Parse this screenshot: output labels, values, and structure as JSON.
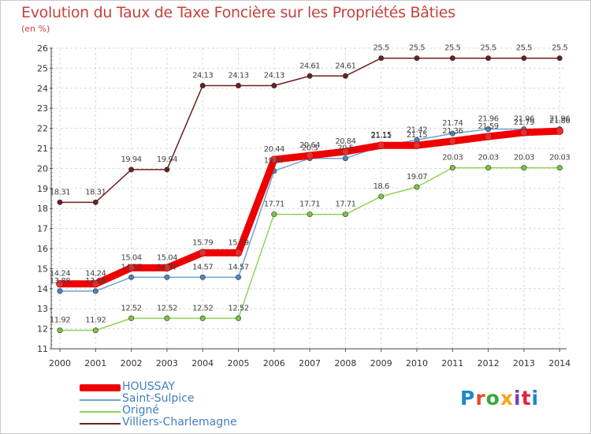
{
  "title": "Evolution du Taux de Taxe Foncière sur les Propriétés Bâties",
  "subtitle": "(en %)",
  "logo": {
    "text": "Proxiti",
    "colors": [
      "#1e88c8",
      "#e84b2a",
      "#3aa63a",
      "#f2a81d",
      "#7c3fb0",
      "#e0233d",
      "#1e88c8"
    ]
  },
  "chart_data": {
    "type": "line",
    "title": "Evolution du Taux de Taxe Foncière sur les Propriétés Bâties",
    "ylabel": "(en %)",
    "xlabel": "",
    "ylim": [
      11,
      26
    ],
    "yticks": [
      11,
      12,
      13,
      14,
      15,
      16,
      17,
      18,
      19,
      20,
      21,
      22,
      23,
      24,
      25,
      26
    ],
    "categories": [
      "2000",
      "2001",
      "2002",
      "2003",
      "2004",
      "2005",
      "2006",
      "2007",
      "2008",
      "2009",
      "2010",
      "2011",
      "2012",
      "2013",
      "2014"
    ],
    "grid": true,
    "legend": "bottom-left",
    "series": [
      {
        "name": "Villiers-Charlemagne",
        "color": "#6b2020",
        "marker": "#6b2020",
        "values": [
          18.31,
          18.31,
          19.94,
          19.94,
          24.13,
          24.13,
          24.13,
          24.61,
          24.61,
          25.5,
          25.5,
          25.5,
          25.5,
          25.5,
          25.5
        ],
        "labels": [
          "18.31",
          "18.31",
          "19.94",
          "19.94",
          "24.13",
          "24.13",
          "24.13",
          "24.61",
          "24.61",
          "25.5",
          "25.5",
          "25.5",
          "25.5",
          "25.5",
          "25.5"
        ]
      },
      {
        "name": "Origné",
        "color": "#8fd454",
        "marker": "#7cc442",
        "values": [
          11.92,
          11.92,
          12.52,
          12.52,
          12.52,
          12.52,
          17.71,
          17.71,
          17.71,
          18.6,
          19.07,
          20.03,
          20.03,
          20.03,
          20.03
        ],
        "labels": [
          "11.92",
          "11.92",
          "12.52",
          "12.52",
          "12.52",
          "12.52",
          "17.71",
          "17.71",
          "17.71",
          "18.6",
          "19.07",
          "20.03",
          "20.03",
          "20.03",
          "20.03"
        ]
      },
      {
        "name": "Saint-Sulpice",
        "color": "#6fa3d4",
        "marker": "#4a86c0",
        "values": [
          13.88,
          13.88,
          14.57,
          14.57,
          14.57,
          14.57,
          19.87,
          20.5,
          20.5,
          21.11,
          21.42,
          21.74,
          21.96,
          21.96,
          21.96
        ],
        "labels": [
          "13.88",
          "13.88",
          "14.57",
          "14.57",
          "14.57",
          "14.57",
          "19.87",
          "20.5",
          "20.5",
          "21.11",
          "21.42",
          "21.74",
          "21.96",
          "21.96",
          "21.96"
        ]
      },
      {
        "name": "HOUSSAY",
        "color": "#ee0000",
        "marker": "#e03030",
        "values": [
          14.24,
          14.24,
          15.04,
          15.04,
          15.79,
          15.79,
          20.44,
          20.64,
          20.84,
          21.15,
          21.15,
          21.36,
          21.59,
          21.79,
          21.86
        ],
        "labels": [
          "14.24",
          "14.24",
          "15.04",
          "15.04",
          "15.79",
          "15.79",
          "20.44",
          "20.64",
          "20.84",
          "21.15",
          "21.15",
          "21.36",
          "21.59",
          "21.79",
          "21.86"
        ]
      }
    ]
  },
  "legend": [
    {
      "name": "HOUSSAY",
      "color": "#ee0000"
    },
    {
      "name": "Saint-Sulpice",
      "color": "#6fa3d4"
    },
    {
      "name": "Origné",
      "color": "#8fd454"
    },
    {
      "name": "Villiers-Charlemagne",
      "color": "#6b2020"
    }
  ]
}
